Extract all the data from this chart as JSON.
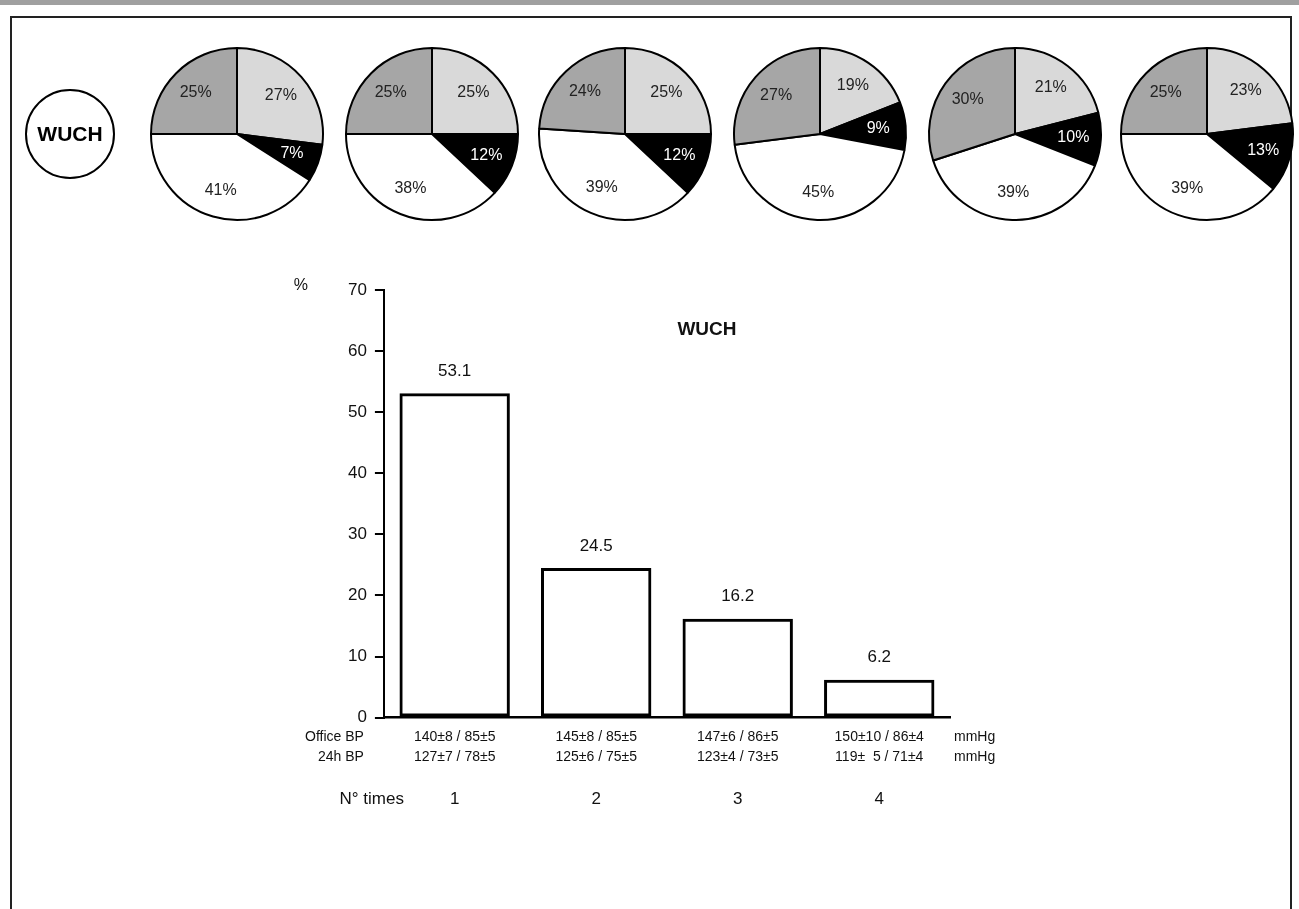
{
  "chart_data": [
    {
      "type": "other",
      "title": "WUCH"
    },
    {
      "type": "pie",
      "categories": [
        null,
        null,
        null,
        null
      ],
      "values": [
        27,
        7,
        41,
        25
      ],
      "colors": [
        "#d9d9d9",
        "#000000",
        "#ffffff",
        "#a6a6a6"
      ],
      "value_labels": [
        "27%",
        "7%",
        "41%",
        "25%"
      ]
    },
    {
      "type": "pie",
      "categories": [
        null,
        null,
        null,
        null
      ],
      "values": [
        25,
        12,
        38,
        25
      ],
      "colors": [
        "#d9d9d9",
        "#000000",
        "#ffffff",
        "#a6a6a6"
      ],
      "value_labels": [
        "25%",
        "12%",
        "38%",
        "25%"
      ]
    },
    {
      "type": "pie",
      "categories": [
        null,
        null,
        null,
        null
      ],
      "values": [
        25,
        12,
        39,
        24
      ],
      "colors": [
        "#d9d9d9",
        "#000000",
        "#ffffff",
        "#a6a6a6"
      ],
      "value_labels": [
        "25%",
        "12%",
        "39%",
        "24%"
      ]
    },
    {
      "type": "pie",
      "categories": [
        null,
        null,
        null,
        null
      ],
      "values": [
        19,
        9,
        45,
        27
      ],
      "colors": [
        "#d9d9d9",
        "#000000",
        "#ffffff",
        "#a6a6a6"
      ],
      "value_labels": [
        "19%",
        "9%",
        "45%",
        "27%"
      ]
    },
    {
      "type": "pie",
      "categories": [
        null,
        null,
        null,
        null
      ],
      "values": [
        21,
        10,
        39,
        30
      ],
      "colors": [
        "#d9d9d9",
        "#000000",
        "#ffffff",
        "#a6a6a6"
      ],
      "value_labels": [
        "21%",
        "10%",
        "39%",
        "30%"
      ]
    },
    {
      "type": "pie",
      "categories": [
        null,
        null,
        null,
        null
      ],
      "values": [
        23,
        13,
        39,
        25
      ],
      "colors": [
        "#d9d9d9",
        "#000000",
        "#ffffff",
        "#a6a6a6"
      ],
      "value_labels": [
        "23%",
        "13%",
        "39%",
        "25%"
      ]
    },
    {
      "type": "bar",
      "title": "WUCH",
      "xlabel": "N° times",
      "ylabel": "%",
      "categories": [
        "1",
        "2",
        "3",
        "4"
      ],
      "values": [
        53.1,
        24.5,
        16.2,
        6.2
      ],
      "color": "#000000",
      "ylim": [
        0,
        70
      ],
      "yticks": [
        0,
        10,
        20,
        30,
        40,
        50,
        60,
        70
      ],
      "data_labels": true,
      "annotations": [
        "Office BP",
        "140±8 / 85±5",
        "145±8 / 85±5",
        "147±6 / 86±5",
        "150±10 / 86±4",
        "mmHg",
        "24h BP",
        "127±7 / 78±5",
        "125±6 / 75±5",
        "123±4 / 73±5",
        "119±  5 / 71±4",
        "mmHg"
      ]
    }
  ]
}
